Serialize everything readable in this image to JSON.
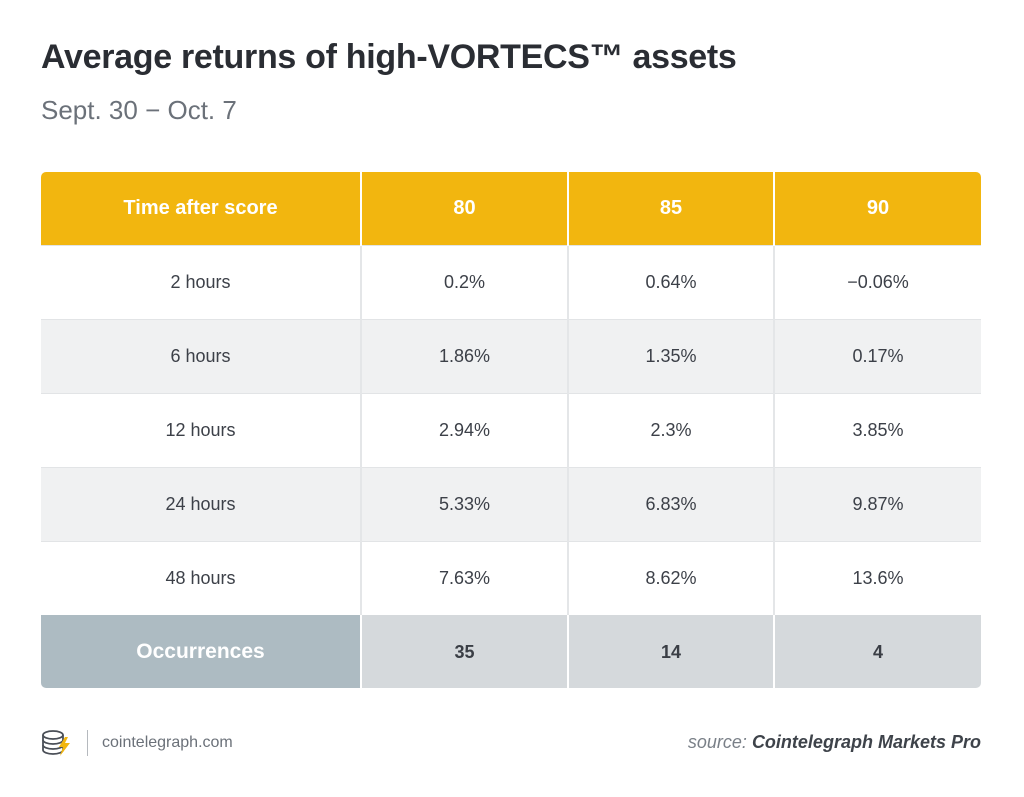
{
  "title": "Average returns of high-VORTECS™ assets",
  "subtitle": "Sept. 30 − Oct. 7",
  "chart_data": {
    "type": "table",
    "columns": [
      "Time after score",
      "80",
      "85",
      "90"
    ],
    "rows": [
      [
        "2 hours",
        "0.2%",
        "0.64%",
        "−0.06%"
      ],
      [
        "6 hours",
        "1.86%",
        "1.35%",
        "0.17%"
      ],
      [
        "12 hours",
        "2.94%",
        "2.3%",
        "3.85%"
      ],
      [
        "24 hours",
        "5.33%",
        "6.83%",
        "9.87%"
      ],
      [
        "48 hours",
        "7.63%",
        "8.62%",
        "13.6%"
      ]
    ],
    "footer": [
      "Occurrences",
      "35",
      "14",
      "4"
    ]
  },
  "brand": {
    "site": "cointelegraph.com",
    "icon": "cointelegraph-logo-icon"
  },
  "source": {
    "prefix": "source:",
    "name": "Cointelegraph Markets Pro"
  },
  "colors": {
    "header": "#f2b60f",
    "footer_label": "#adbbc2",
    "footer": "#d5d9dc",
    "row_alt": "#f0f1f2"
  }
}
